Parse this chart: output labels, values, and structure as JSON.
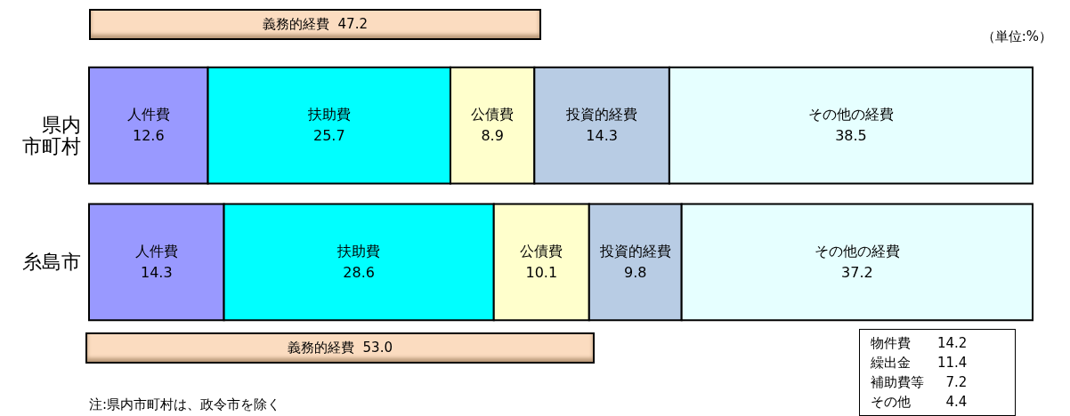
{
  "chart_data": {
    "type": "bar",
    "orientation": "horizontal",
    "stacked": true,
    "data_labels": true,
    "tick_labels": "y",
    "legend": false,
    "categories": [
      "県内市町村",
      "糸島市"
    ],
    "series": [
      {
        "name": "人件費",
        "color": "#9999ff",
        "values": [
          12.6,
          14.3
        ]
      },
      {
        "name": "扶助費",
        "color": "#00ffff",
        "values": [
          25.7,
          28.6
        ]
      },
      {
        "name": "公債費",
        "color": "#ffffcc",
        "values": [
          8.9,
          10.1
        ]
      },
      {
        "name": "投資的経費",
        "color": "#b8cce4",
        "values": [
          14.3,
          9.8
        ]
      },
      {
        "name": "その他の経費",
        "color": "#e6ffff",
        "values": [
          38.5,
          37.2
        ]
      }
    ],
    "annotations": [
      "義務的経費  47.2",
      "（単位:%）",
      "義務的経費  53.0",
      "物件費　　14.2\n繰出金　　11.4\n補助費等　  7.2\nその他　　  4.4",
      "注:県内市町村は、政令市を除く"
    ]
  }
}
